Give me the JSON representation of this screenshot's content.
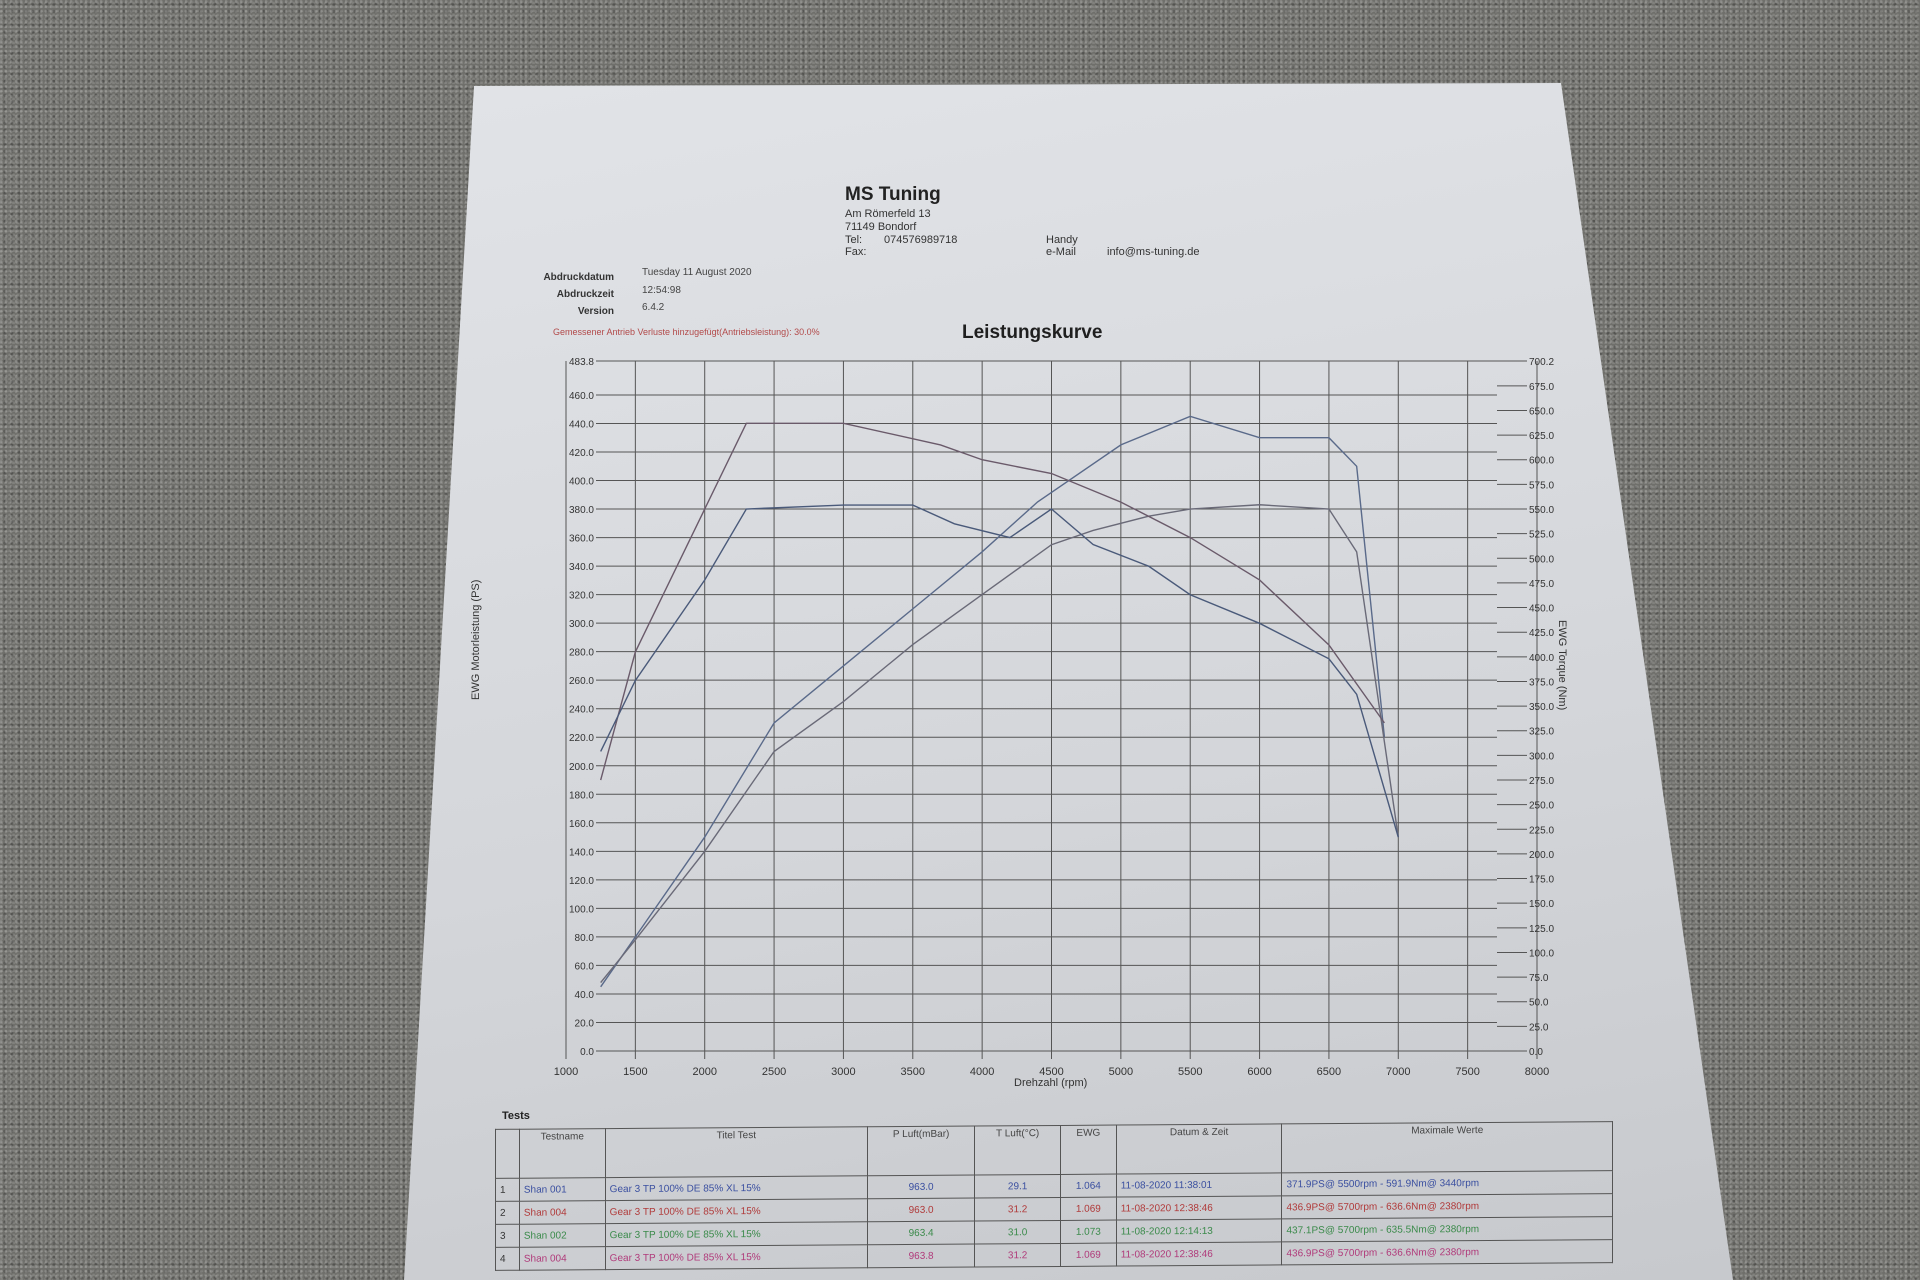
{
  "header": {
    "company": "MS Tuning",
    "street": "Am Römerfeld 13",
    "city": "71149 Bondorf",
    "tel_label": "Tel:",
    "tel": "074576989718",
    "fax_label": "Fax:",
    "handy_label": "Handy",
    "email_label": "e-Mail",
    "email": "info@ms-tuning.de"
  },
  "meta": {
    "print_date_label": "Abdruckdatum",
    "print_date": "Tuesday 11 August 2020",
    "print_time_label": "Abdruckzeit",
    "print_time": "12:54:98",
    "version_label": "Version",
    "version": "6.4.2",
    "note": "Gemessener Antrieb Verluste hinzugefügt(Antriebsleistung): 30.0%"
  },
  "chart_data": {
    "type": "line",
    "title": "Leistungskurve",
    "xlabel": "Drehzahl (rpm)",
    "ylabel": "EWG Motorleistung (PS)",
    "y2label": "EWG Torque (Nm)",
    "xlim": [
      1000,
      8000
    ],
    "ylim": [
      0,
      483.8
    ],
    "y2lim": [
      0,
      700.2
    ],
    "grid": true,
    "x_ticks": [
      1000,
      1500,
      2000,
      2500,
      3000,
      3500,
      4000,
      4500,
      5000,
      5500,
      6000,
      6500,
      7000,
      7500,
      8000
    ],
    "y_ticks": [
      "0.0",
      "20.0",
      "40.0",
      "60.0",
      "80.0",
      "100.0",
      "120.0",
      "140.0",
      "160.0",
      "180.0",
      "200.0",
      "220.0",
      "240.0",
      "260.0",
      "280.0",
      "300.0",
      "320.0",
      "340.0",
      "360.0",
      "380.0",
      "400.0",
      "420.0",
      "440.0",
      "460.0",
      "483.8"
    ],
    "y2_ticks": [
      "0.0",
      "25.0",
      "50.0",
      "75.0",
      "100.0",
      "125.0",
      "150.0",
      "175.0",
      "200.0",
      "225.0",
      "250.0",
      "275.0",
      "300.0",
      "325.0",
      "350.0",
      "375.0",
      "400.0",
      "425.0",
      "450.0",
      "475.0",
      "500.0",
      "525.0",
      "550.0",
      "575.0",
      "600.0",
      "625.0",
      "650.0",
      "675.0",
      "700.2"
    ],
    "series": [
      {
        "axis": "left",
        "color": "#5a6a8a",
        "x": [
          1250,
          1500,
          2000,
          2500,
          3000,
          3500,
          4000,
          4400,
          5000,
          5500,
          6000,
          6500,
          6700,
          6900
        ],
        "y": [
          45,
          80,
          150,
          230,
          270,
          310,
          350,
          385,
          425,
          445,
          430,
          430,
          410,
          220
        ]
      },
      {
        "axis": "left",
        "color": "#6a6a78",
        "x": [
          1250,
          1500,
          2000,
          2500,
          3000,
          3500,
          4000,
          4500,
          4800,
          5200,
          5500,
          6000,
          6500,
          6700,
          7000
        ],
        "y": [
          48,
          78,
          140,
          210,
          245,
          285,
          320,
          355,
          365,
          375,
          380,
          383,
          380,
          350,
          150
        ]
      },
      {
        "axis": "right",
        "color": "#6a5a6a",
        "x": [
          1250,
          1500,
          2000,
          2300,
          3000,
          3700,
          4000,
          4500,
          5000,
          5500,
          6000,
          6500,
          6900
        ],
        "y": [
          275,
          405,
          550,
          637,
          637,
          615,
          600,
          586,
          557,
          521,
          478,
          412,
          333
        ]
      },
      {
        "axis": "right",
        "color": "#4a5a7a",
        "x": [
          1250,
          1500,
          2000,
          2300,
          3000,
          3500,
          3800,
          4200,
          4500,
          4800,
          5200,
          5500,
          6000,
          6500,
          6700,
          7000
        ],
        "y": [
          304,
          376,
          478,
          550,
          554,
          554,
          535,
          521,
          550,
          514,
          492,
          463,
          434,
          398,
          362,
          217
        ]
      }
    ]
  },
  "tests": {
    "label": "Tests",
    "columns": [
      "",
      "Testname",
      "Titel Test",
      "P Luft(mBar)",
      "T Luft(°C)",
      "EWG",
      "Datum & Zeit",
      "Maximale Werte"
    ],
    "rows": [
      {
        "n": "1",
        "name": "Shan 001",
        "title": "Gear 3 TP 100% DE 85% XL 15%",
        "p": "963.0",
        "t": "29.1",
        "ewg": "1.064",
        "date": "11-08-2020 11:38:01",
        "max": "371.9PS@ 5500rpm - 591.9Nm@ 3440rpm",
        "color": "#3a4fa0"
      },
      {
        "n": "2",
        "name": "Shan 004",
        "title": "Gear 3 TP 100% DE 85% XL 15%",
        "p": "963.0",
        "t": "31.2",
        "ewg": "1.069",
        "date": "11-08-2020 12:38:46",
        "max": "436.9PS@ 5700rpm - 636.6Nm@ 2380rpm",
        "color": "#b03a3a"
      },
      {
        "n": "3",
        "name": "Shan 002",
        "title": "Gear 3 TP 100% DE 85% XL 15%",
        "p": "963.4",
        "t": "31.0",
        "ewg": "1.073",
        "date": "11-08-2020 12:14:13",
        "max": "437.1PS@ 5700rpm - 635.5Nm@ 2380rpm",
        "color": "#3a8a4a"
      },
      {
        "n": "4",
        "name": "Shan 004",
        "title": "Gear 3 TP 100% DE 85% XL 15%",
        "p": "963.8",
        "t": "31.2",
        "ewg": "1.069",
        "date": "11-08-2020 12:38:46",
        "max": "436.9PS@ 5700rpm - 636.6Nm@ 2380rpm",
        "color": "#b03a7a"
      }
    ]
  }
}
